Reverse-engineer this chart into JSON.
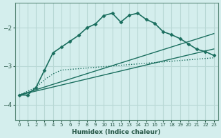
{
  "xlabel": "Humidex (Indice chaleur)",
  "background_color": "#d4eeed",
  "grid_color": "#b8d8d5",
  "line_color": "#1a6e5e",
  "xlim": [
    -0.5,
    23.5
  ],
  "ylim": [
    -4.4,
    -1.35
  ],
  "yticks": [
    -4,
    -3,
    -2
  ],
  "xticks": [
    0,
    1,
    2,
    3,
    4,
    5,
    6,
    7,
    8,
    9,
    10,
    11,
    12,
    13,
    14,
    15,
    16,
    17,
    18,
    19,
    20,
    21,
    22,
    23
  ],
  "series": [
    {
      "x": [
        0,
        1,
        2,
        3,
        4,
        5,
        6,
        7,
        8,
        9,
        10,
        11,
        12,
        13,
        14,
        15,
        16,
        17,
        18,
        19,
        20,
        21,
        22,
        23
      ],
      "y": [
        -3.75,
        -3.75,
        -3.55,
        -3.1,
        -2.65,
        -2.5,
        -2.35,
        -2.2,
        -2.0,
        -1.9,
        -1.68,
        -1.62,
        -1.85,
        -1.67,
        -1.62,
        -1.78,
        -1.88,
        -2.1,
        -2.18,
        -2.28,
        -2.42,
        -2.56,
        -2.62,
        -2.72
      ],
      "linestyle": "-",
      "marker": "D",
      "markersize": 2.5,
      "linewidth": 1.2
    },
    {
      "x": [
        0,
        23
      ],
      "y": [
        -3.75,
        -2.15
      ],
      "linestyle": "-",
      "marker": null,
      "markersize": 0,
      "linewidth": 1.0
    },
    {
      "x": [
        0,
        23
      ],
      "y": [
        -3.75,
        -2.55
      ],
      "linestyle": "-",
      "marker": null,
      "markersize": 0,
      "linewidth": 1.0
    },
    {
      "x": [
        0,
        2,
        3,
        4,
        5,
        23
      ],
      "y": [
        -3.75,
        -3.55,
        -3.35,
        -3.2,
        -3.1,
        -2.78
      ],
      "linestyle": ":",
      "marker": null,
      "markersize": 0,
      "linewidth": 1.0
    }
  ]
}
